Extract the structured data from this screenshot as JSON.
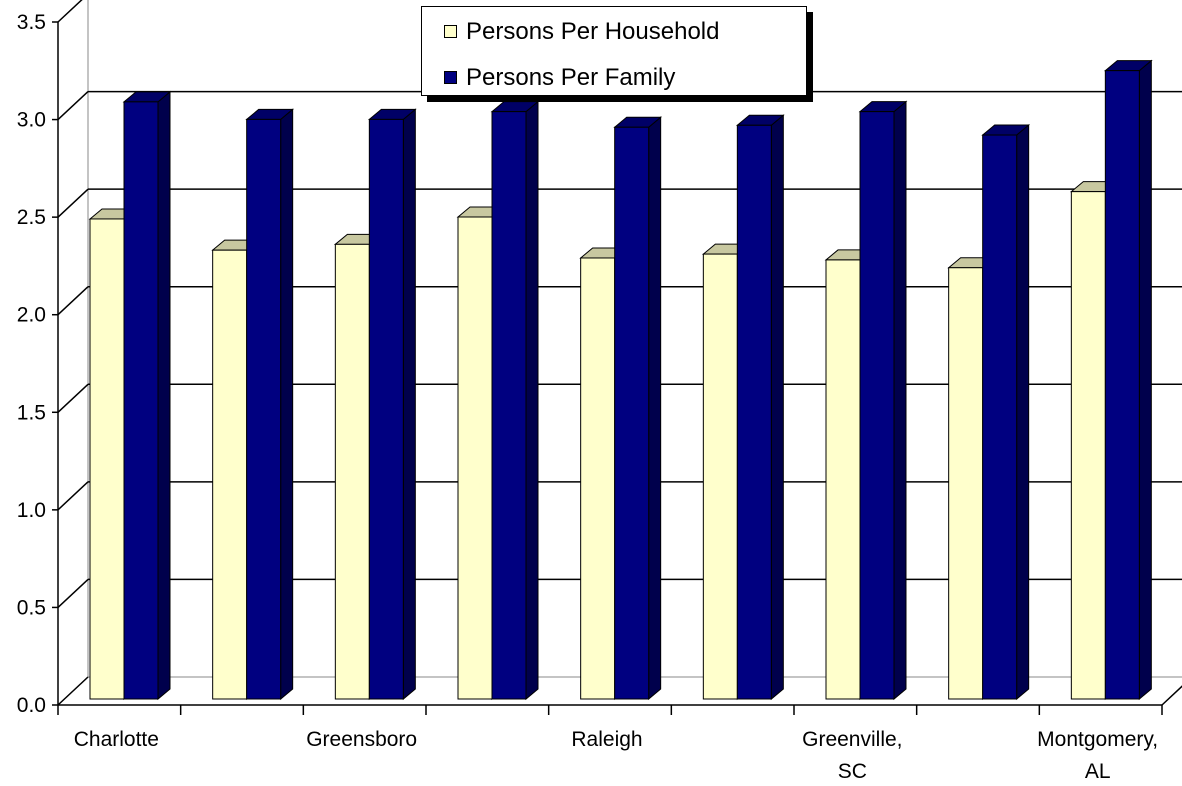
{
  "chart_data": {
    "type": "bar",
    "title": "",
    "xlabel": "",
    "ylabel": "",
    "ylim": [
      0,
      3.5
    ],
    "y_ticks": [
      "0.0",
      "0.5",
      "1.0",
      "1.5",
      "2.0",
      "2.5",
      "3.0",
      "3.5"
    ],
    "categories": [
      "Charlotte",
      "",
      "Greensboro",
      "",
      "Raleigh",
      "",
      "Greenville, SC",
      "",
      "Montgomery, AL"
    ],
    "category_labels": [
      [
        "Charlotte"
      ],
      [],
      [
        "Greensboro"
      ],
      [],
      [
        "Raleigh"
      ],
      [],
      [
        "Greenville,",
        "SC"
      ],
      [],
      [
        "Montgomery,",
        "AL"
      ]
    ],
    "series": [
      {
        "name": "Persons Per Household",
        "color": "#FFFFCC",
        "top_color": "#C8C8A0",
        "side_color": "#A0A080",
        "values": [
          2.46,
          2.3,
          2.33,
          2.47,
          2.26,
          2.28,
          2.25,
          2.21,
          2.6
        ]
      },
      {
        "name": "Persons Per Family",
        "color": "#000080",
        "top_color": "#000066",
        "side_color": "#00004C",
        "values": [
          3.06,
          2.97,
          2.97,
          3.01,
          2.93,
          2.94,
          3.01,
          2.89,
          3.22
        ]
      }
    ],
    "grid": true,
    "legend_position": "top-center",
    "style": "3d-clustered-column"
  }
}
